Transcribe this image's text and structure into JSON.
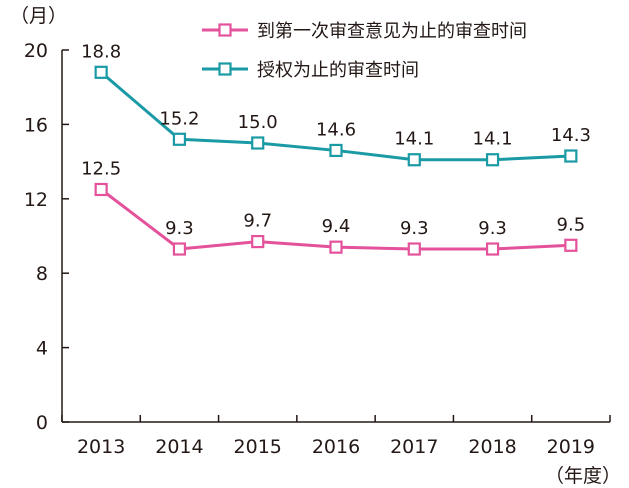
{
  "chart_data": {
    "type": "line",
    "x": [
      "2013",
      "2014",
      "2015",
      "2016",
      "2017",
      "2018",
      "2019"
    ],
    "series": [
      {
        "name": "到第一次审查意见为止的审查时间",
        "values": [
          12.5,
          9.3,
          9.7,
          9.4,
          9.3,
          9.3,
          9.5
        ],
        "labels": [
          "12.5",
          "9.3",
          "9.7",
          "9.4",
          "9.3",
          "9.3",
          "9.5"
        ],
        "color": "#e3529b"
      },
      {
        "name": "授权为止的审查时间",
        "values": [
          18.8,
          15.2,
          15.0,
          14.6,
          14.1,
          14.1,
          14.3
        ],
        "labels": [
          "18.8",
          "15.2",
          "15.0",
          "14.6",
          "14.1",
          "14.1",
          "14.3"
        ],
        "color": "#1a9aa5"
      }
    ],
    "y_unit": "（月）",
    "x_unit": "（年度）",
    "ylim": [
      0,
      20
    ],
    "yticks": [
      "0",
      "4",
      "8",
      "12",
      "16",
      "20"
    ],
    "grid": false,
    "legend_position": "top-right"
  }
}
